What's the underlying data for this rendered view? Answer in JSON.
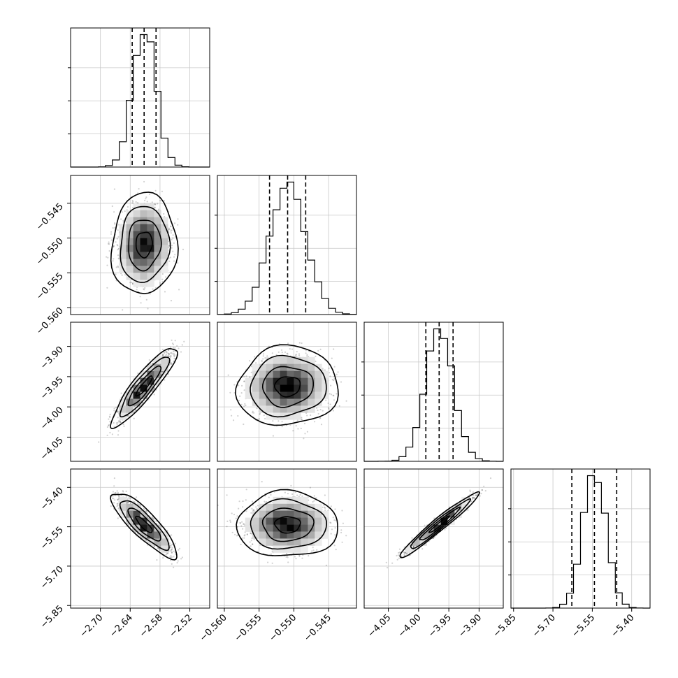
{
  "chart_data": {
    "type": "corner",
    "grid": true,
    "parameters": [
      {
        "range": [
          -2.76,
          -2.48
        ],
        "mean": -2.612,
        "sd": 0.0235,
        "quantiles": [
          -2.636,
          -2.612,
          -2.588
        ],
        "ticks": [
          -2.7,
          -2.64,
          -2.58,
          -2.52
        ],
        "tick_labels": [
          "−2.70",
          "−2.64",
          "−2.58",
          "−2.52"
        ]
      },
      {
        "range": [
          -0.561,
          -0.541
        ],
        "mean": -0.5509,
        "sd": 0.0026,
        "quantiles": [
          -0.5535,
          -0.5509,
          -0.5483
        ],
        "ticks": [
          -0.56,
          -0.555,
          -0.55,
          -0.545
        ],
        "tick_labels": [
          "−0.560",
          "−0.555",
          "−0.550",
          "−0.545"
        ]
      },
      {
        "range": [
          -4.09,
          -3.86
        ],
        "mean": -3.966,
        "sd": 0.0235,
        "quantiles": [
          -3.988,
          -3.966,
          -3.943
        ],
        "ticks": [
          -4.05,
          -4.0,
          -3.95,
          -3.9
        ],
        "tick_labels": [
          "−4.05",
          "−4.00",
          "−3.95",
          "−3.90"
        ]
      },
      {
        "range": [
          -5.86,
          -5.33
        ],
        "mean": -5.542,
        "sd": 0.0445,
        "quantiles": [
          -5.628,
          -5.542,
          -5.457
        ],
        "ticks": [
          -5.85,
          -5.7,
          -5.55,
          -5.4
        ],
        "tick_labels": [
          "−5.85",
          "−5.70",
          "−5.55",
          "−5.40"
        ]
      }
    ],
    "correlations": [
      [
        1,
        0.05,
        0.9,
        -0.85
      ],
      [
        0.05,
        1,
        0.05,
        0.0
      ],
      [
        0.9,
        0.05,
        1,
        0.97
      ],
      [
        -0.85,
        0.0,
        0.97,
        1
      ]
    ],
    "correlations_note": "estimated from the shape of each 2D panel",
    "contour_levels_sigma": [
      0.5,
      1.0,
      1.5,
      2.0
    ],
    "histogram_bins": 20,
    "scatter_points_per_panel": 1800
  }
}
